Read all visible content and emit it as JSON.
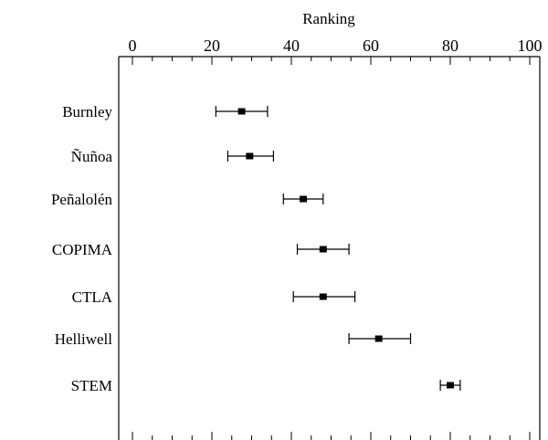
{
  "chart_data": {
    "type": "errorbar",
    "xlabel": "Ranking",
    "xlim": [
      0,
      100
    ],
    "x_ticks": [
      0,
      20,
      40,
      60,
      80,
      100
    ],
    "minor_step": 5,
    "grid": false,
    "categories": [
      "Burnley",
      "Ñuñoa",
      "Peñalolén",
      "COPIMA",
      "CTLA",
      "Helliwell",
      "STEM"
    ],
    "values": [
      27.5,
      29.5,
      43,
      48,
      48,
      62,
      80
    ],
    "lower": [
      21,
      24,
      38,
      41.5,
      40.5,
      54.5,
      77.5
    ],
    "upper": [
      34,
      35.5,
      48,
      54.5,
      56,
      70,
      82.5
    ],
    "colors": {
      "marker": "#000000",
      "line": "#000000"
    }
  }
}
